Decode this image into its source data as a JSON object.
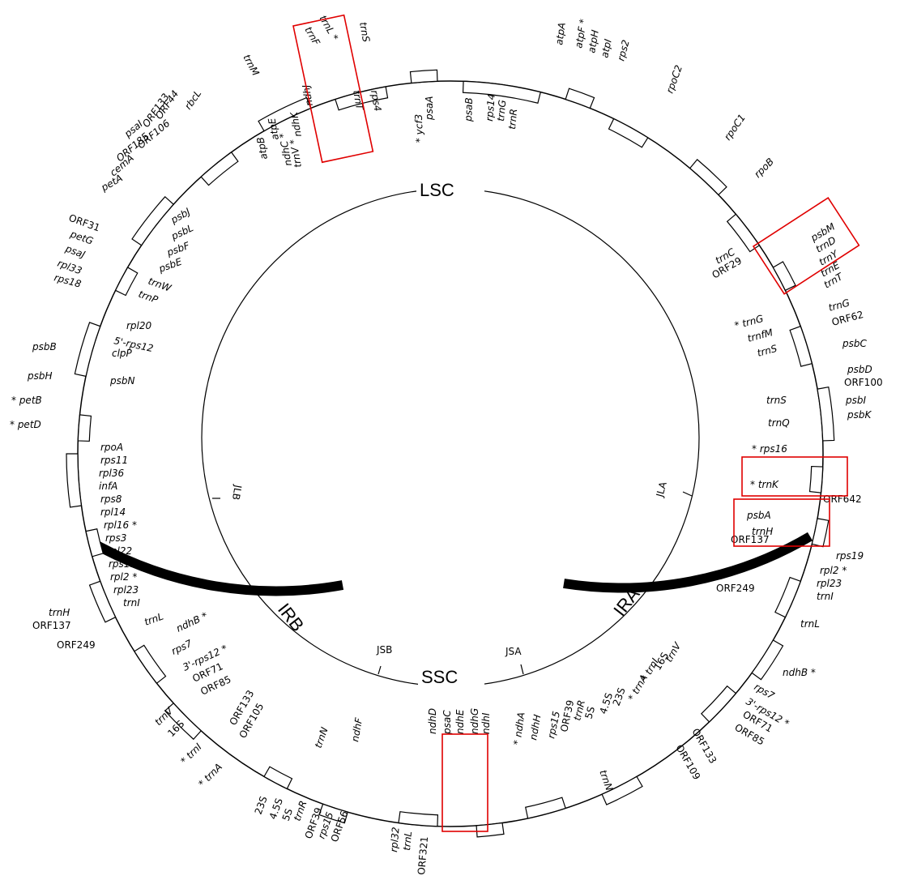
{
  "map": {
    "regions": {
      "lsc": "LSC",
      "ssc": "SSC",
      "ira": "IRA",
      "irb": "IRB"
    },
    "junctions": {
      "jla": "JLA",
      "jlb": "JLB",
      "jsa": "JSA",
      "jsb": "JSB"
    },
    "highlight_color": "#e00000",
    "genes": [
      "trnL *",
      "trnF",
      "trnS",
      "rps4",
      "trnT",
      "ndhJ",
      "trnM",
      "ndhK",
      "ndhC *",
      "atpE",
      "atpB",
      "trnV *",
      "rbcL",
      "ORF44",
      "ORF133",
      "ORF106",
      "psaI",
      "ORF185",
      "cemA",
      "petA",
      "ORF31",
      "petG",
      "psaJ",
      "rpl33",
      "rps18",
      "psbJ",
      "psbL",
      "psbF",
      "psbE",
      "trnW",
      "trnP",
      "rpl20",
      "5'-rps12",
      "clpP",
      "psbB",
      "psbN",
      "psbH",
      "* petB",
      "* petD",
      "rpoA",
      "rps11",
      "rpl36",
      "infA",
      "rps8",
      "rpl14",
      "rpl16 *",
      "rps3",
      "rpl22",
      "rps19",
      "rpl2 *",
      "rpl23",
      "trnI",
      "trnH",
      "ORF137",
      "trnL",
      "ndhB *",
      "ORF249",
      "rps7",
      "3'-rps12 *",
      "ORF71",
      "ORF85",
      "ORF133",
      "ORF105",
      "trnV",
      "16S",
      "* trnI",
      "* trnA",
      "23S",
      "4.5S",
      "5S",
      "trnR",
      "ORF39",
      "rps15",
      "ORF56",
      "trnN",
      "ndhF",
      "rpl32",
      "trnL",
      "ORF321",
      "ndhD",
      "psaC",
      "ndhE",
      "ndhG",
      "ndhI",
      "* ndhA",
      "ndhH",
      "rps15",
      "ORF39",
      "trnR",
      "5S",
      "4.5S",
      "23S",
      "* trnA",
      "* trnI",
      "16S",
      "trnV",
      "ORF133",
      "ORF109",
      "trnN",
      "rps7",
      "3'-rps12 *",
      "ORF71",
      "ORF85",
      "trnL",
      "ndhB *",
      "ORF249",
      "ORF137",
      "rps19",
      "rpl2 *",
      "rpl23",
      "trnI",
      "trnH",
      "psbA",
      "* trnK",
      "ORF642",
      "* rps16",
      "trnQ",
      "psbK",
      "trnS",
      "psbI",
      "psbD",
      "ORF100",
      "psbC",
      "trnS",
      "trnfM",
      "* trnG",
      "trnG",
      "ORF62",
      "trnC",
      "ORF29",
      "psbM",
      "trnD",
      "trnY",
      "trnE",
      "trnT",
      "rpoB",
      "rpoC1",
      "rpoC2",
      "rps2",
      "atpI",
      "atpH",
      "atpF *",
      "atpA",
      "trnR",
      "trnG",
      "rps14",
      "psaB",
      "psaA",
      "* ycf3"
    ]
  }
}
